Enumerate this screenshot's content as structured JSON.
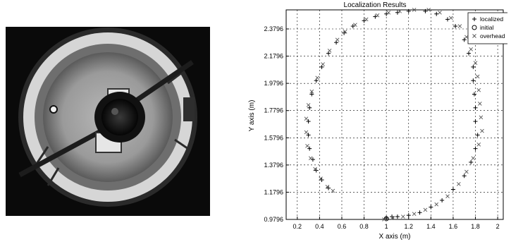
{
  "photo": {
    "description_visible": ""
  },
  "chart_data": {
    "type": "scatter",
    "title": "Localization Results",
    "xlabel": "X axis (m)",
    "ylabel": "Y axis (m)",
    "xlim": [
      0.1,
      2.05
    ],
    "ylim": [
      0.9796,
      2.5196
    ],
    "xticks": [
      0.2,
      0.4,
      0.6,
      0.8,
      1.0,
      1.2,
      1.4,
      1.6,
      1.8,
      2.0
    ],
    "xtick_labels": [
      "0.2",
      "0.4",
      "0.6",
      "0.8",
      "1",
      "1.2",
      "1.4",
      "1.6",
      "1.8",
      "2"
    ],
    "yticks": [
      0.9796,
      1.1796,
      1.3796,
      1.5796,
      1.7796,
      1.9796,
      2.1796,
      2.3796
    ],
    "ytick_labels": [
      "0.9796",
      "1.1796",
      "1.3796",
      "1.5796",
      "1.7796",
      "1.9796",
      "2.1796",
      "2.3796"
    ],
    "grid": true,
    "legend_position": "top-right",
    "series": [
      {
        "name": "localized",
        "marker": "+",
        "x": [
          1.0,
          1.05,
          1.1,
          1.2,
          1.3,
          1.4,
          1.5,
          1.6,
          1.7,
          1.76,
          1.8,
          1.82,
          1.8,
          1.8,
          1.79,
          1.78,
          1.78,
          1.74,
          1.7,
          1.62,
          1.55,
          1.45,
          1.35,
          1.2,
          1.1,
          1.0,
          0.9,
          0.8,
          0.7,
          0.62,
          0.55,
          0.48,
          0.42,
          0.37,
          0.33,
          0.31,
          0.3,
          0.3,
          0.31,
          0.34,
          0.37,
          0.42,
          0.48
        ],
        "y": [
          0.99,
          1.0,
          1.0,
          1.01,
          1.03,
          1.07,
          1.12,
          1.2,
          1.3,
          1.4,
          1.5,
          1.6,
          1.7,
          1.8,
          1.9,
          2.0,
          2.1,
          2.2,
          2.3,
          2.4,
          2.45,
          2.49,
          2.51,
          2.51,
          2.5,
          2.49,
          2.47,
          2.44,
          2.4,
          2.35,
          2.28,
          2.2,
          2.1,
          2.0,
          1.9,
          1.8,
          1.7,
          1.6,
          1.5,
          1.42,
          1.34,
          1.27,
          1.21
        ]
      },
      {
        "name": "initial",
        "marker": "o",
        "x": [
          1.0
        ],
        "y": [
          0.985
        ]
      },
      {
        "name": "overhead",
        "marker": "x",
        "x": [
          0.98,
          1.06,
          1.15,
          1.25,
          1.35,
          1.45,
          1.55,
          1.65,
          1.72,
          1.78,
          1.83,
          1.86,
          1.85,
          1.84,
          1.83,
          1.82,
          1.8,
          1.76,
          1.72,
          1.66,
          1.58,
          1.48,
          1.38,
          1.25,
          1.12,
          1.02,
          0.92,
          0.82,
          0.72,
          0.63,
          0.56,
          0.49,
          0.43,
          0.38,
          0.33,
          0.3,
          0.28,
          0.28,
          0.29,
          0.32,
          0.36,
          0.41,
          0.47,
          0.52
        ],
        "y": [
          0.98,
          0.99,
          1.0,
          1.02,
          1.05,
          1.09,
          1.15,
          1.24,
          1.33,
          1.43,
          1.53,
          1.63,
          1.73,
          1.83,
          1.93,
          2.03,
          2.13,
          2.23,
          2.32,
          2.4,
          2.46,
          2.5,
          2.52,
          2.52,
          2.51,
          2.5,
          2.48,
          2.45,
          2.41,
          2.36,
          2.3,
          2.22,
          2.12,
          2.02,
          1.92,
          1.82,
          1.72,
          1.62,
          1.52,
          1.43,
          1.35,
          1.28,
          1.22,
          1.19
        ]
      }
    ]
  }
}
